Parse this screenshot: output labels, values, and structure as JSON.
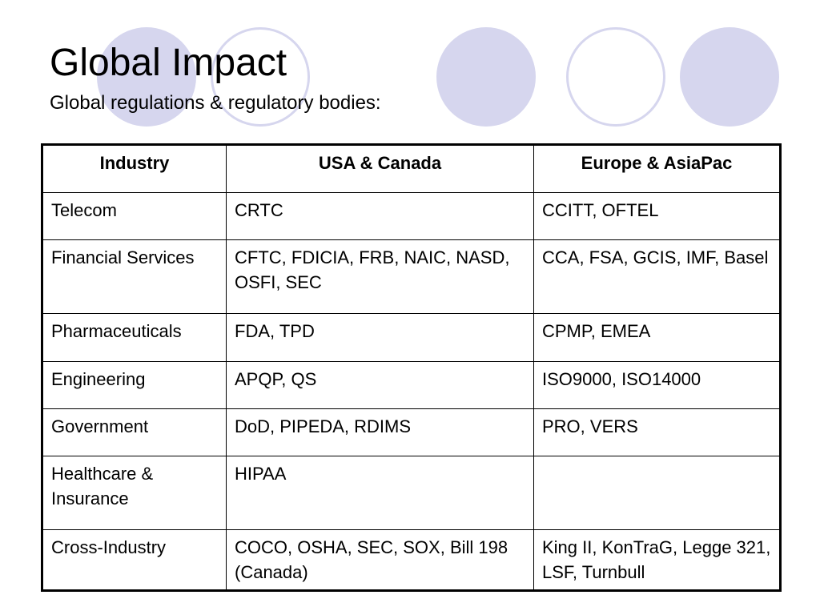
{
  "slide": {
    "title": "Global Impact",
    "subtitle": "Global regulations & regulatory bodies:",
    "decoration_color": "#d6d6ee"
  },
  "table": {
    "headers": [
      "Industry",
      "USA & Canada",
      "Europe & AsiaPac"
    ],
    "rows": [
      {
        "industry": "Telecom",
        "usa_canada": "CRTC",
        "europe_asiapac": "CCITT, OFTEL"
      },
      {
        "industry": "Financial Services",
        "usa_canada": "CFTC, FDICIA, FRB, NAIC, NASD, OSFI, SEC",
        "europe_asiapac": "CCA, FSA, GCIS, IMF, Basel"
      },
      {
        "industry": "Pharmaceuticals",
        "usa_canada": "FDA, TPD",
        "europe_asiapac": "CPMP, EMEA"
      },
      {
        "industry": "Engineering",
        "usa_canada": "APQP, QS",
        "europe_asiapac": "ISO9000, ISO14000"
      },
      {
        "industry": "Government",
        "usa_canada": "DoD, PIPEDA, RDIMS",
        "europe_asiapac": "PRO, VERS"
      },
      {
        "industry": "Healthcare & Insurance",
        "usa_canada": "HIPAA",
        "europe_asiapac": ""
      },
      {
        "industry": "Cross-Industry",
        "usa_canada": "COCO, OSHA, SEC, SOX, Bill 198 (Canada)",
        "europe_asiapac": "King II, KonTraG, Legge 321, LSF, Turnbull"
      }
    ]
  }
}
